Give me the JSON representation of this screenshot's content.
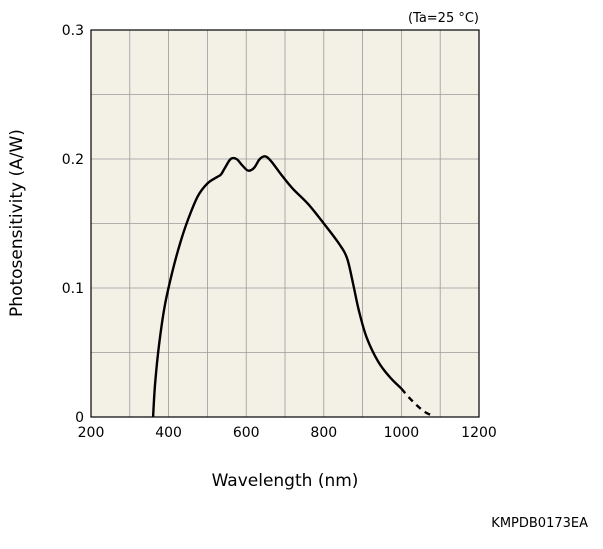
{
  "chart_data": {
    "type": "line",
    "title": "",
    "condition_label": "(Ta=25 °C)",
    "xlabel": "Wavelength (nm)",
    "ylabel": "Photosensitivity (A/W)",
    "xlim": [
      200,
      1200
    ],
    "ylim": [
      0,
      0.3
    ],
    "x_ticks": [
      200,
      400,
      600,
      800,
      1000,
      1200
    ],
    "x_tick_labels": [
      "200",
      "400",
      "600",
      "800",
      "1000",
      "1200"
    ],
    "y_ticks": [
      0,
      0.1,
      0.2,
      0.3
    ],
    "y_tick_labels": [
      "0",
      "0.1",
      "0.2",
      "0.3"
    ],
    "x_grid_step": 100,
    "y_grid_step": 0.05,
    "grid": true,
    "legend": "none",
    "plot_background": "#f3f1e6",
    "line_color": "#000000",
    "series": [
      {
        "style": "solid",
        "points": [
          [
            360,
            0
          ],
          [
            365,
            0.025
          ],
          [
            375,
            0.055
          ],
          [
            390,
            0.086
          ],
          [
            410,
            0.113
          ],
          [
            430,
            0.135
          ],
          [
            450,
            0.153
          ],
          [
            475,
            0.171
          ],
          [
            500,
            0.181
          ],
          [
            525,
            0.186
          ],
          [
            535,
            0.188
          ],
          [
            545,
            0.193
          ],
          [
            560,
            0.2
          ],
          [
            575,
            0.2
          ],
          [
            590,
            0.195
          ],
          [
            605,
            0.191
          ],
          [
            620,
            0.193
          ],
          [
            635,
            0.2
          ],
          [
            650,
            0.202
          ],
          [
            665,
            0.198
          ],
          [
            690,
            0.188
          ],
          [
            720,
            0.177
          ],
          [
            760,
            0.165
          ],
          [
            800,
            0.15
          ],
          [
            840,
            0.134
          ],
          [
            860,
            0.123
          ],
          [
            875,
            0.104
          ],
          [
            890,
            0.083
          ],
          [
            910,
            0.062
          ],
          [
            940,
            0.043
          ],
          [
            970,
            0.031
          ],
          [
            1000,
            0.022
          ]
        ]
      },
      {
        "style": "dashed",
        "points": [
          [
            1000,
            0.022
          ],
          [
            1020,
            0.015
          ],
          [
            1040,
            0.009
          ],
          [
            1060,
            0.004
          ],
          [
            1080,
            0.001
          ]
        ]
      }
    ]
  },
  "figure_code": "KMPDB0173EA"
}
